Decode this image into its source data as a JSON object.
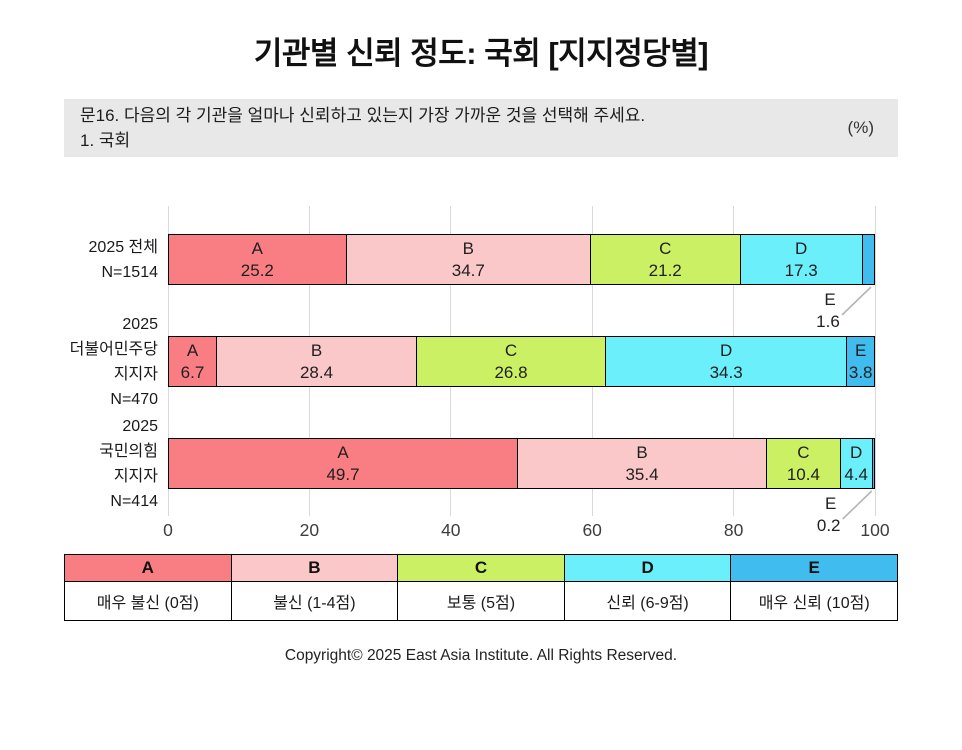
{
  "title": "기관별 신뢰 정도: 국회 [지지정당별]",
  "question_box": {
    "line1": "문16. 다음의 각 기관을 얼마나 신뢰하고 있는지 가장 가까운 것을 선택해 주세요.",
    "line2": "1. 국회",
    "unit": "(%)"
  },
  "chart_data": {
    "type": "bar",
    "stacked": true,
    "orientation": "horizontal",
    "unit": "%",
    "x_axis": {
      "min": 0,
      "max": 100,
      "ticks": [
        0,
        20,
        40,
        60,
        80,
        100
      ]
    },
    "grid": true,
    "series_keys": [
      "A",
      "B",
      "C",
      "D",
      "E"
    ],
    "rows": [
      {
        "label_lines": [
          "2025 전체",
          "N=1514"
        ],
        "values": [
          25.2,
          34.7,
          21.2,
          17.3,
          1.6
        ]
      },
      {
        "label_lines": [
          "2025",
          "더불어민주당",
          "지지자",
          "N=470"
        ],
        "values": [
          6.7,
          28.4,
          26.8,
          34.3,
          3.8
        ]
      },
      {
        "label_lines": [
          "2025",
          "국민의힘",
          "지지자",
          "N=414"
        ],
        "values": [
          49.7,
          35.4,
          10.4,
          4.4,
          0.2
        ]
      }
    ]
  },
  "legend": {
    "items": [
      {
        "letter": "A",
        "label": "매우 불신 (0점)",
        "color": "#F97E83"
      },
      {
        "letter": "B",
        "label": "불신 (1-4점)",
        "color": "#FBC8C9"
      },
      {
        "letter": "C",
        "label": "보통 (5점)",
        "color": "#CCF063"
      },
      {
        "letter": "D",
        "label": "신뢰 (6-9점)",
        "color": "#6BEFFA"
      },
      {
        "letter": "E",
        "label": "매우 신뢰 (10점)",
        "color": "#40BDEE"
      }
    ]
  },
  "copyright": "Copyright© 2025 East Asia Institute. All Rights Reserved."
}
